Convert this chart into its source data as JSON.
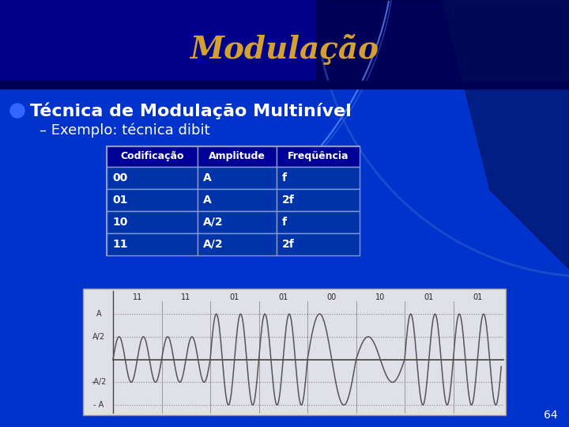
{
  "title": "Modulação",
  "title_color": "#D4A030",
  "bg_color": "#0033CC",
  "bg_dark": "#000080",
  "separator_color": "#000066",
  "bullet_text": "Técnica de Modulação Multinível",
  "sub_text": "– Exemplo: técnica dibit",
  "table_headers": [
    "Codificação",
    "Amplitude",
    "Freqüência"
  ],
  "table_rows": [
    [
      "00",
      "A",
      "f"
    ],
    [
      "01",
      "A",
      "2f"
    ],
    [
      "10",
      "A/2",
      "f"
    ],
    [
      "11",
      "A/2",
      "2f"
    ]
  ],
  "table_header_bg": "#000099",
  "table_row_bg": "#0033AA",
  "table_border": "#8899CC",
  "table_text_color": "white",
  "wave_bg": "#E0E0E8",
  "wave_line_color": "#555555",
  "page_number": "64",
  "segments": [
    {
      "label": "11",
      "amp": 0.5,
      "freq": 2
    },
    {
      "label": "11",
      "amp": 0.5,
      "freq": 2
    },
    {
      "label": "01",
      "amp": 1.0,
      "freq": 2
    },
    {
      "label": "01",
      "amp": 1.0,
      "freq": 2
    },
    {
      "label": "00",
      "amp": 1.0,
      "freq": 1
    },
    {
      "label": "10",
      "amp": 0.5,
      "freq": 1
    },
    {
      "label": "01",
      "amp": 1.0,
      "freq": 2
    },
    {
      "label": "01",
      "amp": 1.0,
      "freq": 2
    }
  ]
}
